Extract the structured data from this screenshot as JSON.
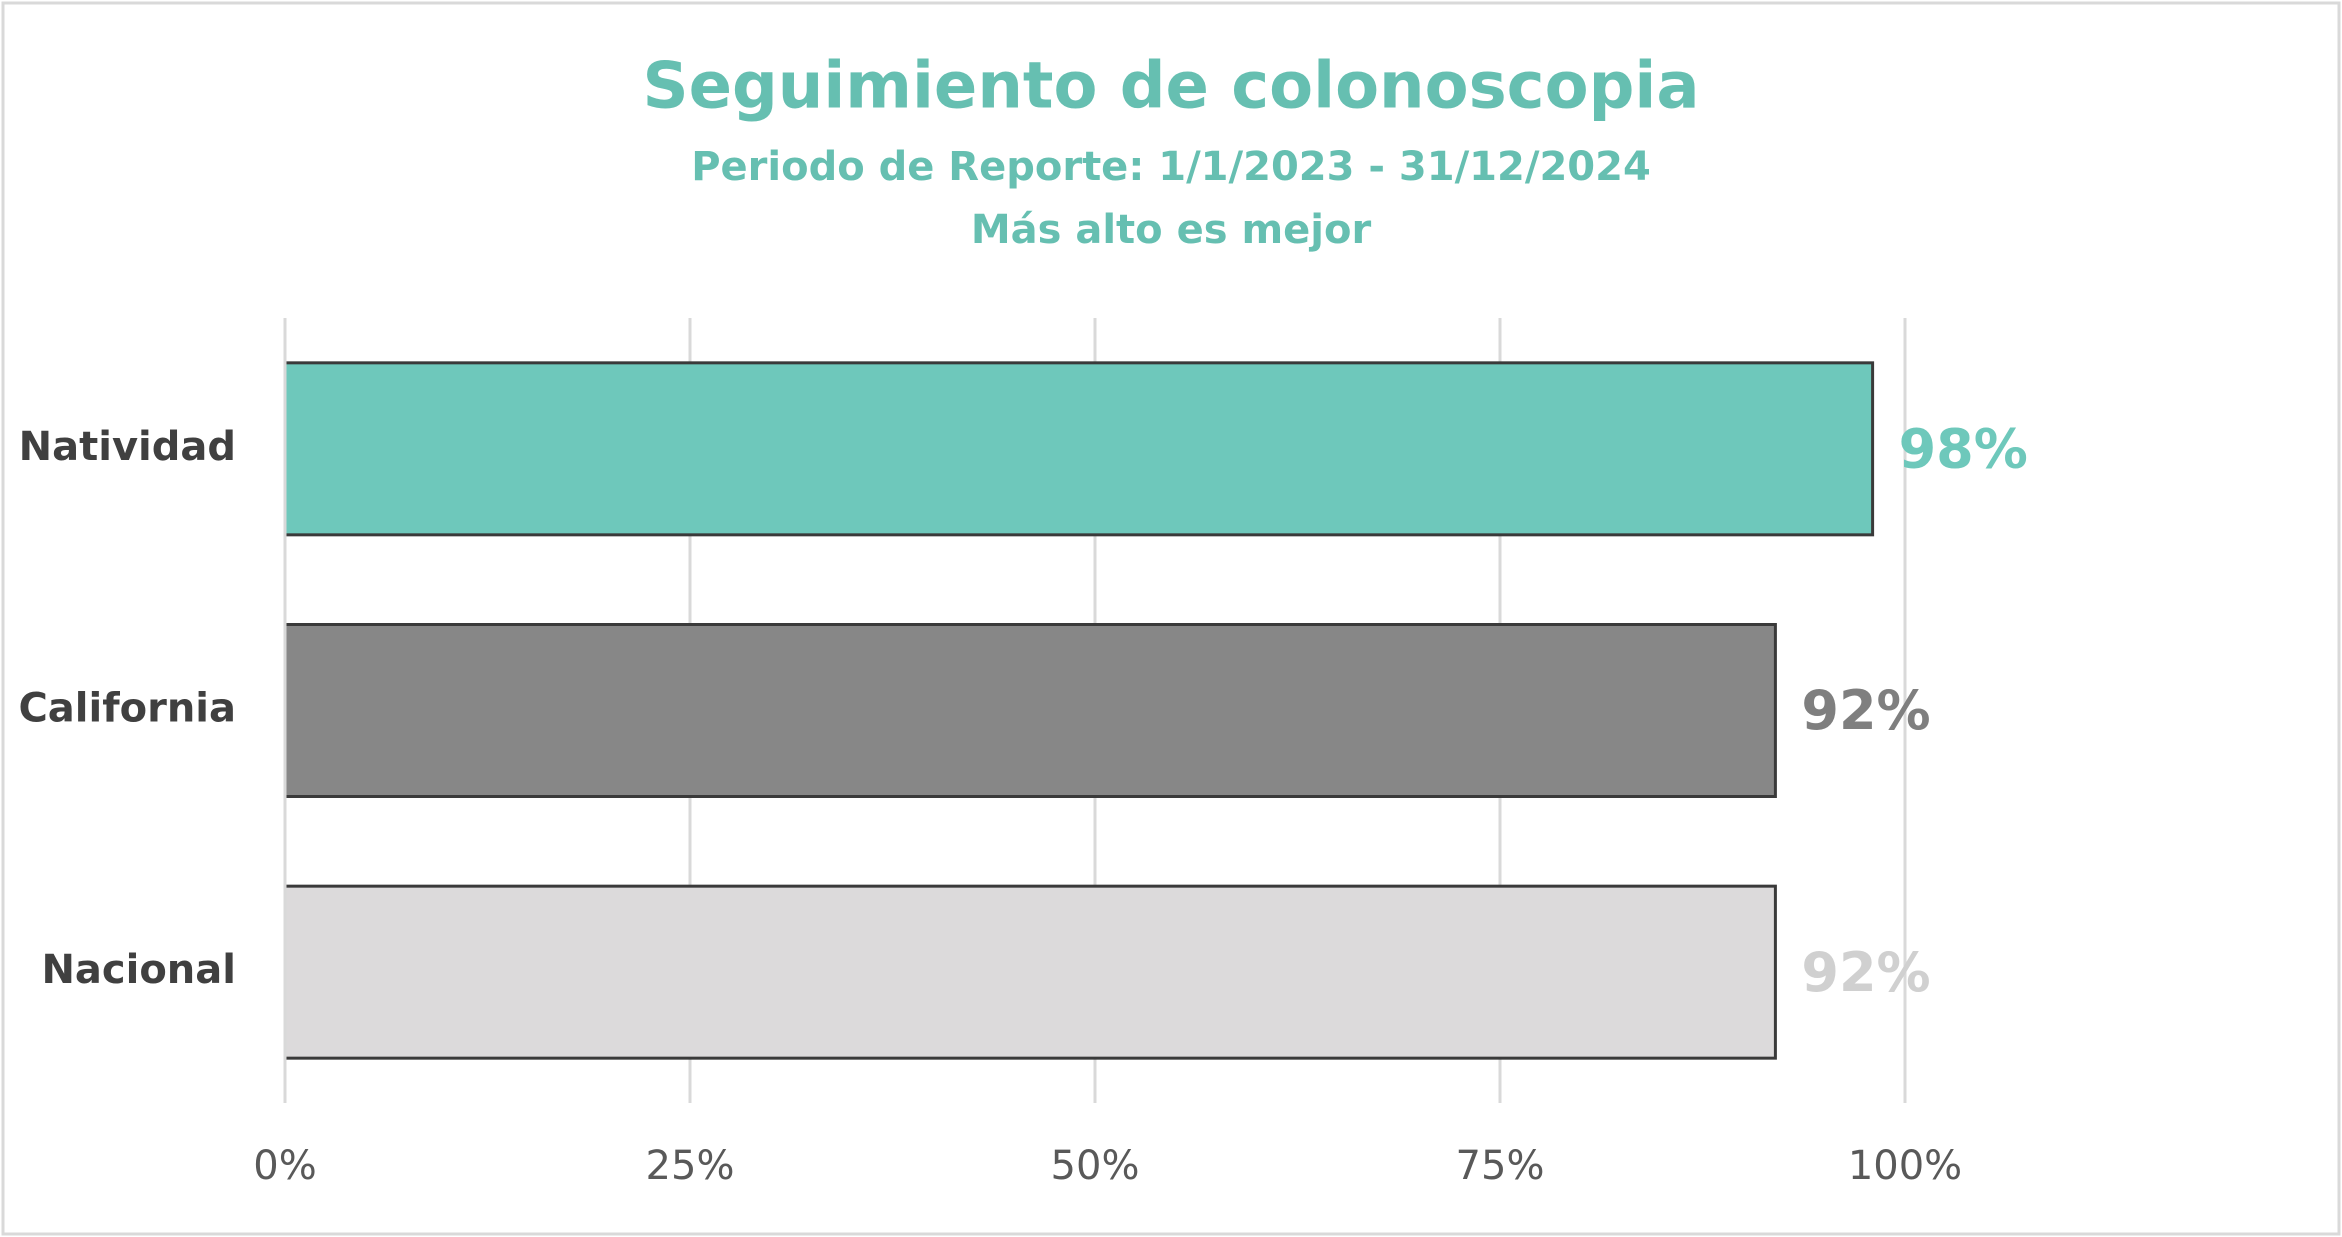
{
  "chart_data": {
    "type": "hbar",
    "title": "Seguimiento de colonoscopia",
    "subtitle": [
      "Periodo de Reporte: 1/1/2023 - 31/12/2024",
      "Más alto es mejor"
    ],
    "categories": [
      "Natividad",
      "California",
      "Nacional"
    ],
    "values": [
      98,
      92,
      92
    ],
    "value_labels": [
      "98%",
      "92%",
      "92%"
    ],
    "colors": [
      "#6ec8bb",
      "#878787",
      "#dcdadb"
    ],
    "label_colors": [
      "#6ec8bb",
      "#7f7f7f",
      "#d0d0d0"
    ],
    "title_color": "#66bfb1",
    "xlim": [
      0,
      100
    ],
    "xticks": [
      {
        "value": 0,
        "label": "0%"
      },
      {
        "value": 25,
        "label": "25%"
      },
      {
        "value": 50,
        "label": "50%"
      },
      {
        "value": 75,
        "label": "75%"
      },
      {
        "value": 100,
        "label": "100%"
      }
    ],
    "grid": true
  }
}
